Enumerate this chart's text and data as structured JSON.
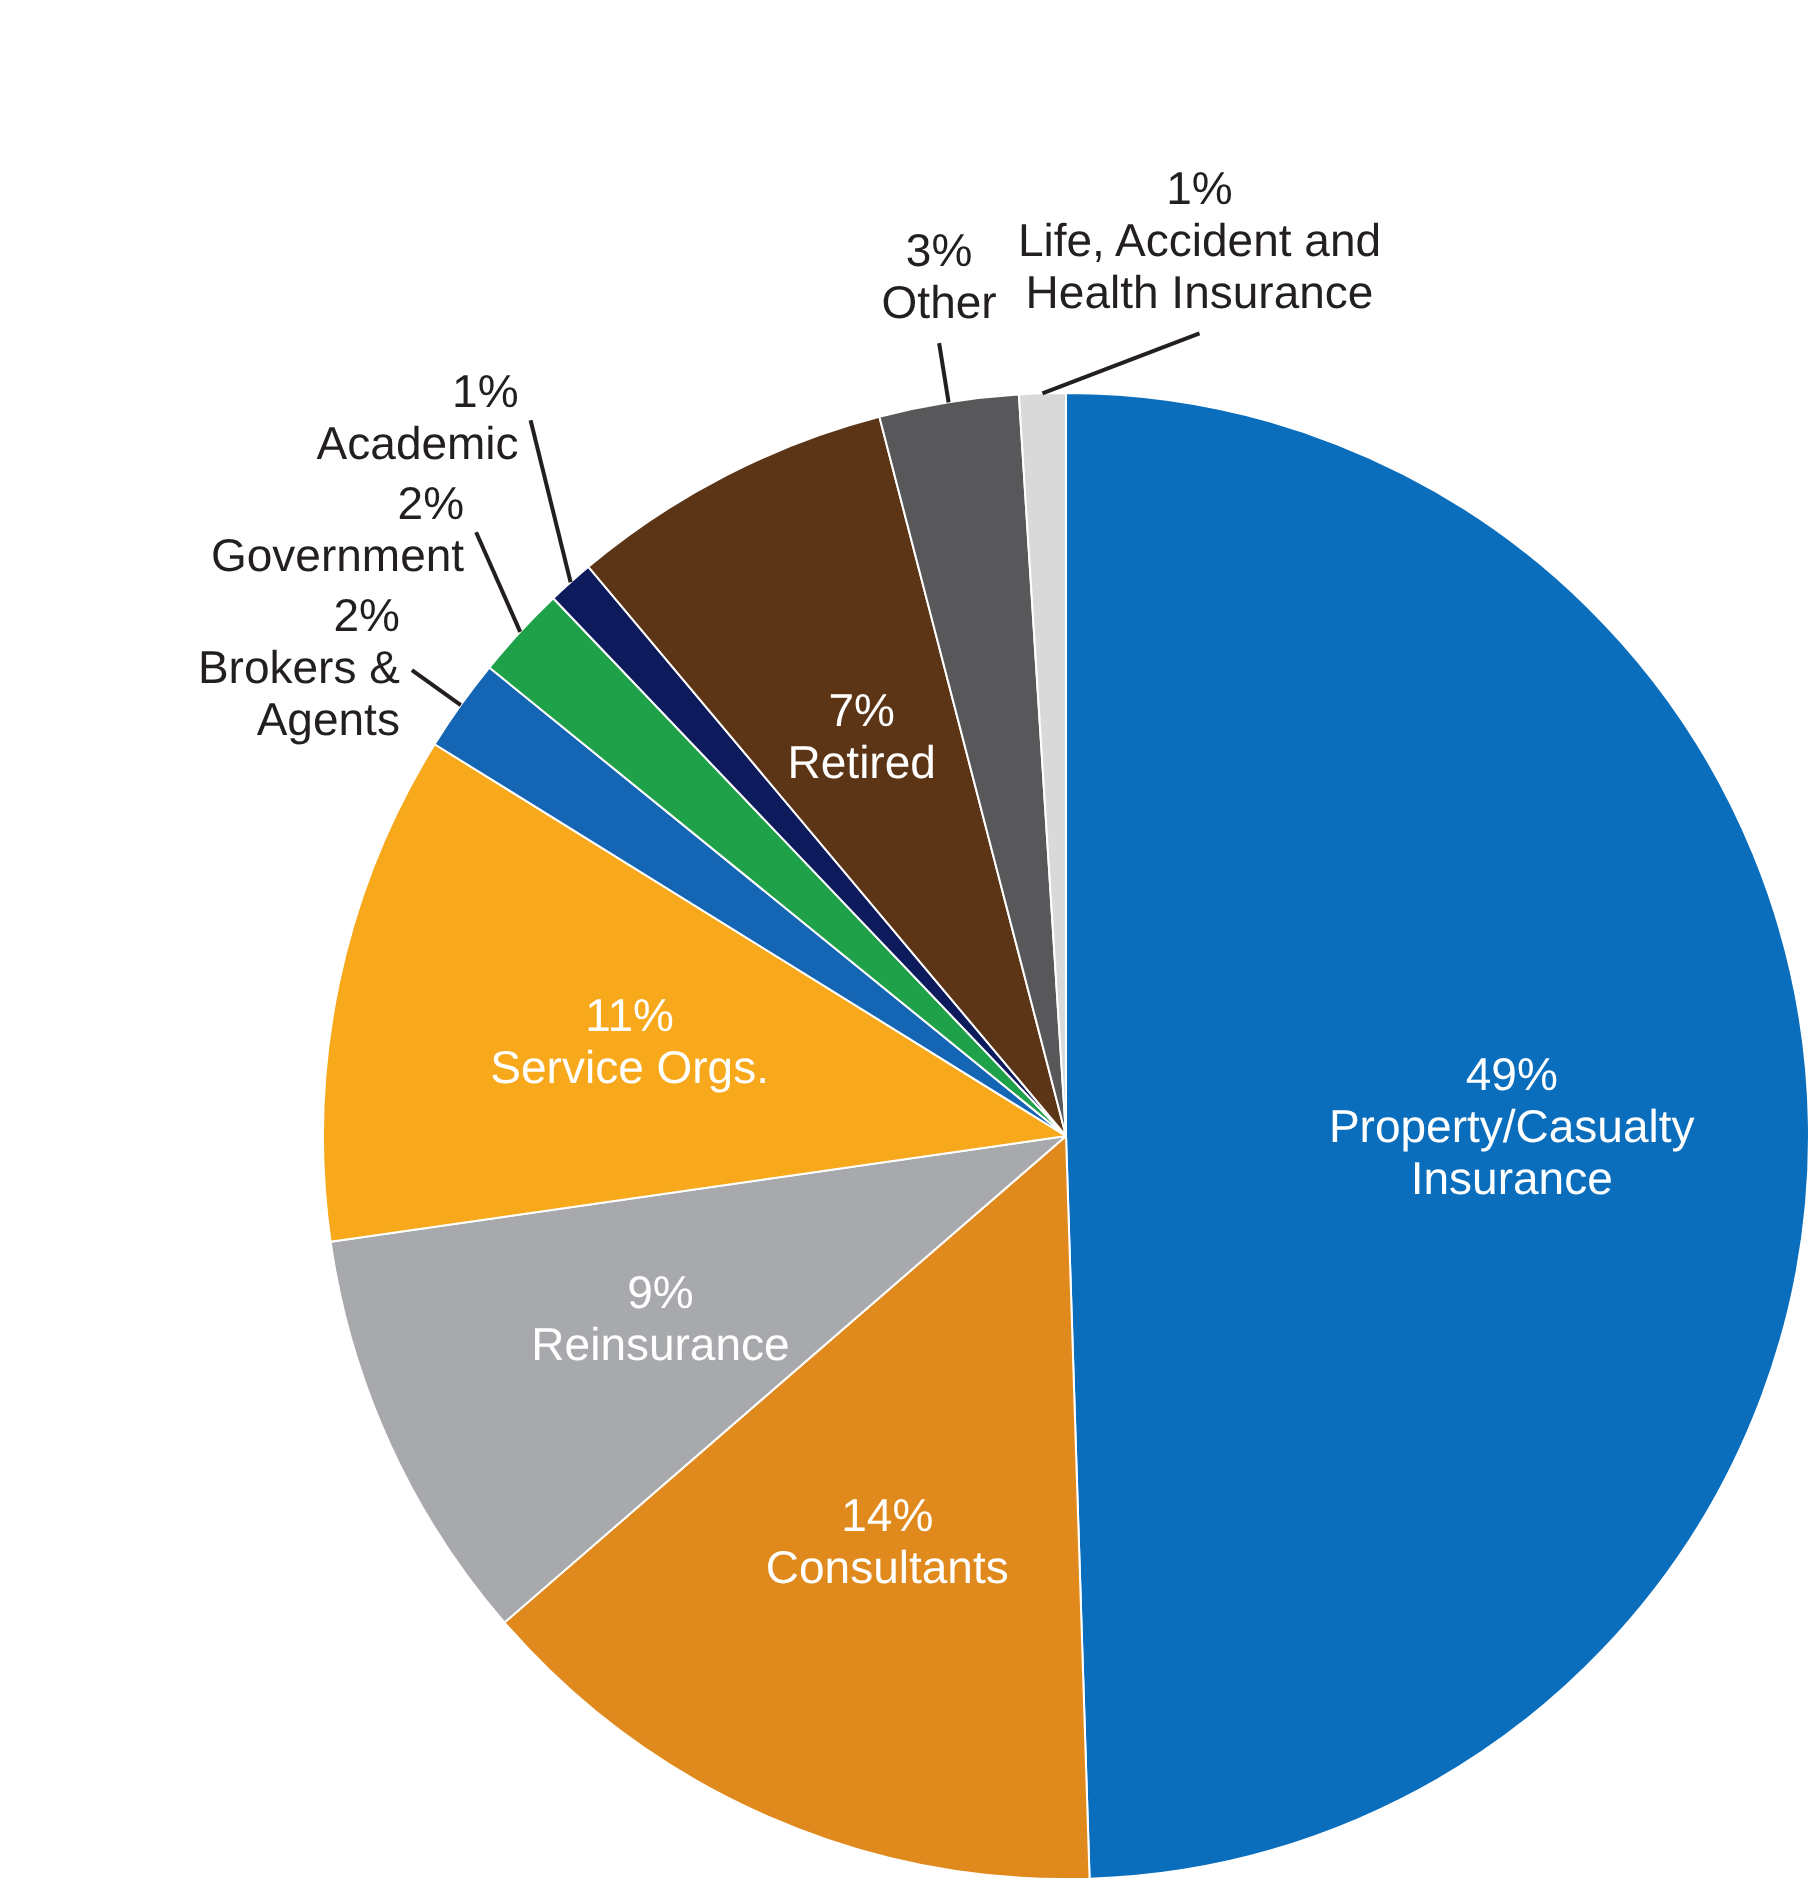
{
  "chart_data": {
    "type": "pie",
    "categories": [
      "Property/Casualty Insurance",
      "Consultants",
      "Reinsurance",
      "Service Orgs.",
      "Brokers & Agents",
      "Government",
      "Academic",
      "Retired",
      "Other",
      "Life, Accident and Health Insurance"
    ],
    "values": [
      49,
      14,
      9,
      11,
      2,
      2,
      1,
      7,
      3,
      1
    ],
    "value_labels": [
      "49%",
      "14%",
      "9%",
      "11%",
      "2%",
      "2%",
      "1%",
      "7%",
      "3%",
      "1%"
    ],
    "colors": [
      "#0a6ebd",
      "#e08a1e",
      "#a7a9ac",
      "#f7a81b",
      "#1565b5",
      "#1fa14a",
      "#0d1a5c",
      "#5c3416",
      "#58585a",
      "#d9d9d9"
    ],
    "legend": false
  }
}
